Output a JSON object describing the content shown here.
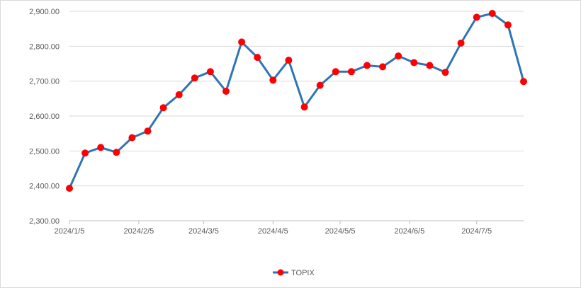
{
  "chart_data": {
    "type": "line",
    "title": "",
    "xlabel": "",
    "ylabel": "",
    "ylim": [
      2300,
      2900
    ],
    "yticks": [
      "2,300.00",
      "2,400.00",
      "2,500.00",
      "2,600.00",
      "2,700.00",
      "2,800.00",
      "2,900.00"
    ],
    "xticks": [
      "2024/1/5",
      "2024/2/5",
      "2024/3/5",
      "2024/4/5",
      "2024/5/5",
      "2024/6/5",
      "2024/7/5"
    ],
    "grid": true,
    "legend_position": "bottom",
    "colors": {
      "line": "#2e75b6",
      "marker": "#ff0000"
    },
    "series": [
      {
        "name": "TOPIX",
        "x": [
          "2024/1/5",
          "2024/1/12",
          "2024/1/19",
          "2024/1/26",
          "2024/2/2",
          "2024/2/9",
          "2024/2/16",
          "2024/2/23",
          "2024/3/1",
          "2024/3/8",
          "2024/3/15",
          "2024/3/22",
          "2024/3/29",
          "2024/4/5",
          "2024/4/12",
          "2024/4/19",
          "2024/4/26",
          "2024/5/3",
          "2024/5/10",
          "2024/5/17",
          "2024/5/24",
          "2024/5/31",
          "2024/6/7",
          "2024/6/14",
          "2024/6/21",
          "2024/6/28",
          "2024/7/5",
          "2024/7/12",
          "2024/7/19",
          "2024/7/26"
        ],
        "values": [
          2393,
          2494,
          2510,
          2496,
          2538,
          2557,
          2624,
          2661,
          2709,
          2727,
          2671,
          2812,
          2768,
          2703,
          2760,
          2626,
          2688,
          2727,
          2727,
          2745,
          2741,
          2772,
          2753,
          2745,
          2725,
          2809,
          2883,
          2894,
          2861,
          2699
        ]
      }
    ]
  }
}
